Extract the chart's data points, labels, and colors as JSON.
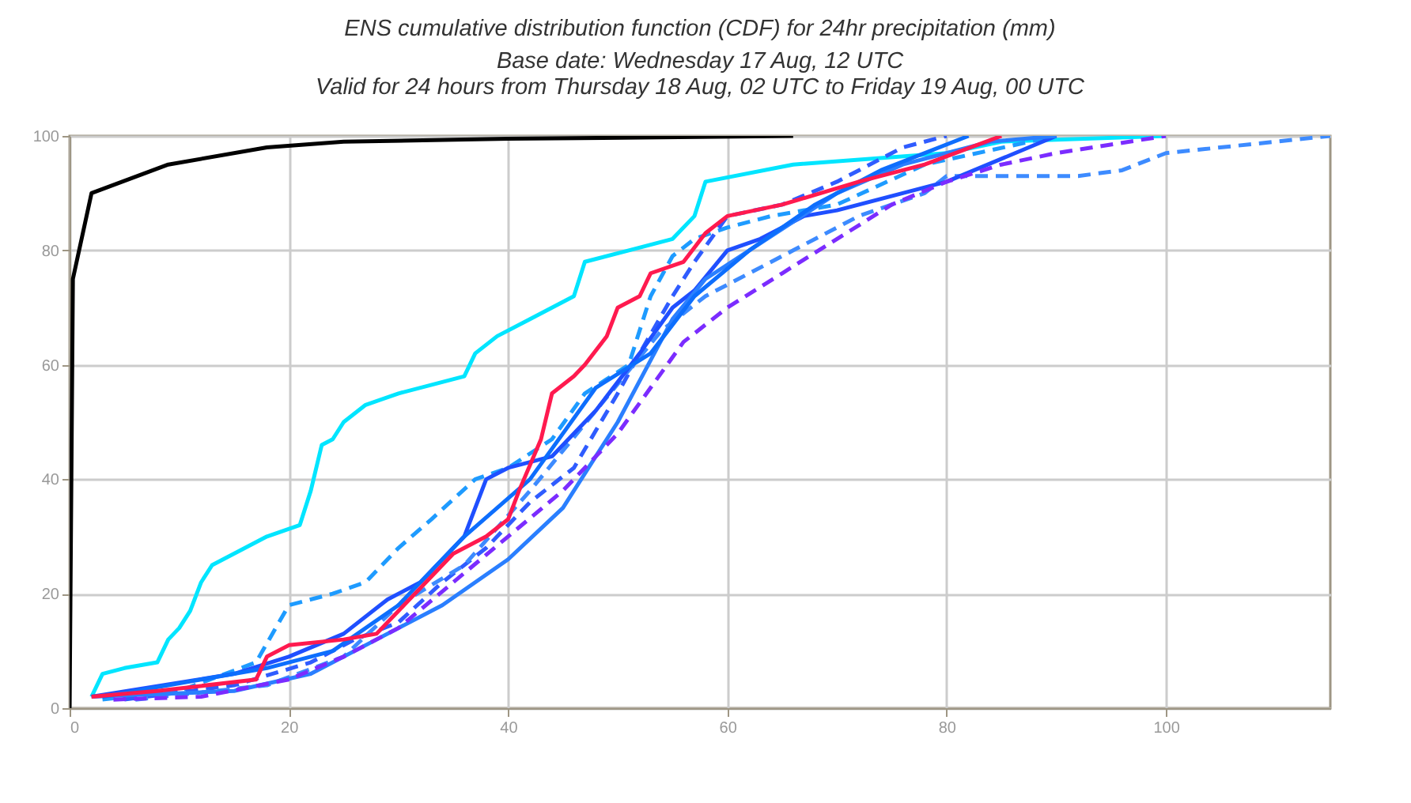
{
  "chart_data": {
    "type": "line",
    "title": "ENS cumulative distribution function (CDF) for 24hr precipitation (mm)",
    "subtitle": "Base date: Wednesday 17 Aug, 12 UTC\nValid for 24 hours from Thursday 18 Aug, 02 UTC to Friday 19 Aug, 00 UTC",
    "xlim": [
      0,
      115
    ],
    "xticks": [
      0,
      20,
      40,
      60,
      80,
      100
    ],
    "ylim": [
      0,
      100
    ],
    "yticks": [
      0,
      20,
      40,
      60,
      80,
      100
    ],
    "grid": true,
    "marker": "none",
    "series": [
      {
        "color": "#000000",
        "line_style": "solid",
        "x": [
          0,
          0.3,
          2,
          9,
          18,
          25,
          40,
          66
        ],
        "values": [
          0,
          75,
          90,
          95,
          98,
          99,
          99.5,
          100
        ]
      },
      {
        "color": "#00e5ff",
        "line_style": "solid",
        "x": [
          2,
          3,
          5,
          8,
          9,
          10,
          11,
          12,
          13,
          16,
          18,
          21,
          22,
          23,
          24,
          25,
          27,
          30,
          36,
          37,
          39,
          42,
          46,
          47,
          51,
          55,
          57,
          58,
          66,
          80,
          85,
          100
        ],
        "values": [
          2,
          6,
          7,
          8,
          12,
          14,
          17,
          22,
          25,
          28,
          30,
          32,
          38,
          46,
          47,
          50,
          53,
          55,
          58,
          62,
          65,
          68,
          72,
          78,
          80,
          82,
          86,
          92,
          95,
          97,
          99,
          100
        ]
      },
      {
        "color": "#1e9bff",
        "line_style": "dashed",
        "x": [
          3,
          10,
          17,
          20,
          24,
          27,
          30,
          33,
          37,
          40,
          44,
          47,
          51,
          53,
          55,
          57,
          60,
          64,
          70,
          78,
          90
        ],
        "values": [
          1.5,
          3,
          8,
          18,
          20,
          22,
          28,
          33,
          40,
          42,
          47,
          55,
          60,
          72,
          79,
          82,
          84,
          86,
          88,
          95,
          100
        ]
      },
      {
        "color": "#2f5cff",
        "line_style": "dashed",
        "x": [
          5,
          15,
          22,
          26,
          30,
          34,
          38,
          42,
          46,
          50,
          52,
          55,
          57,
          60,
          65,
          70,
          76,
          80
        ],
        "values": [
          1.5,
          4,
          8,
          12,
          15,
          22,
          28,
          36,
          42,
          55,
          62,
          72,
          78,
          86,
          88,
          92,
          98,
          100
        ]
      },
      {
        "color": "#3d8bff",
        "line_style": "dashed",
        "x": [
          6,
          18,
          25,
          30,
          36,
          42,
          48,
          54,
          58,
          62,
          66,
          72,
          78,
          80,
          92,
          96,
          100,
          115
        ],
        "values": [
          1.5,
          4,
          9,
          18,
          25,
          38,
          52,
          66,
          72,
          76,
          80,
          86,
          90,
          93,
          93,
          94,
          97,
          100
        ]
      },
      {
        "color": "#1f4fff",
        "line_style": "solid",
        "x": [
          2,
          15,
          20,
          25,
          29,
          32,
          36,
          38,
          40,
          44,
          48,
          52,
          55,
          57,
          60,
          63,
          67,
          70,
          76,
          80,
          90
        ],
        "values": [
          2,
          6,
          9,
          13,
          19,
          22,
          30,
          40,
          42,
          44,
          52,
          62,
          70,
          73,
          80,
          82,
          86,
          87,
          90,
          92,
          100
        ]
      },
      {
        "color": "#2a7fff",
        "line_style": "solid",
        "x": [
          2,
          15,
          22,
          28,
          34,
          40,
          45,
          50,
          55,
          58,
          62,
          66,
          70,
          76,
          84,
          90
        ],
        "values": [
          2,
          3,
          6,
          12,
          18,
          26,
          35,
          50,
          68,
          75,
          80,
          85,
          90,
          95,
          99,
          100
        ]
      },
      {
        "color": "#0d6efd",
        "line_style": "solid",
        "x": [
          3,
          18,
          24,
          30,
          36,
          42,
          48,
          53,
          57,
          62,
          68,
          74,
          82
        ],
        "values": [
          2,
          7,
          10,
          18,
          30,
          40,
          56,
          62,
          72,
          80,
          88,
          94,
          100
        ]
      },
      {
        "color": "#7b2cff",
        "line_style": "dashed",
        "x": [
          4,
          12,
          20,
          25,
          30,
          35,
          40,
          45,
          50,
          53,
          56,
          60,
          65,
          70,
          75,
          80,
          85,
          90,
          100
        ],
        "values": [
          1.5,
          2,
          5,
          9,
          14,
          22,
          30,
          38,
          48,
          56,
          64,
          70,
          76,
          82,
          88,
          92,
          95,
          97,
          100
        ]
      },
      {
        "color": "#ff1a4f",
        "line_style": "solid",
        "x": [
          2,
          8,
          17,
          18,
          20,
          25,
          28,
          30,
          32,
          35,
          38,
          40,
          41,
          43,
          44,
          46,
          47,
          49,
          50,
          52,
          53,
          56,
          58,
          60,
          65,
          72,
          78,
          85
        ],
        "values": [
          2,
          3,
          5,
          9,
          11,
          12,
          13,
          17,
          21,
          27,
          30,
          33,
          38,
          47,
          55,
          58,
          60,
          65,
          70,
          72,
          76,
          78,
          83,
          86,
          88,
          92,
          95,
          100
        ]
      }
    ]
  }
}
